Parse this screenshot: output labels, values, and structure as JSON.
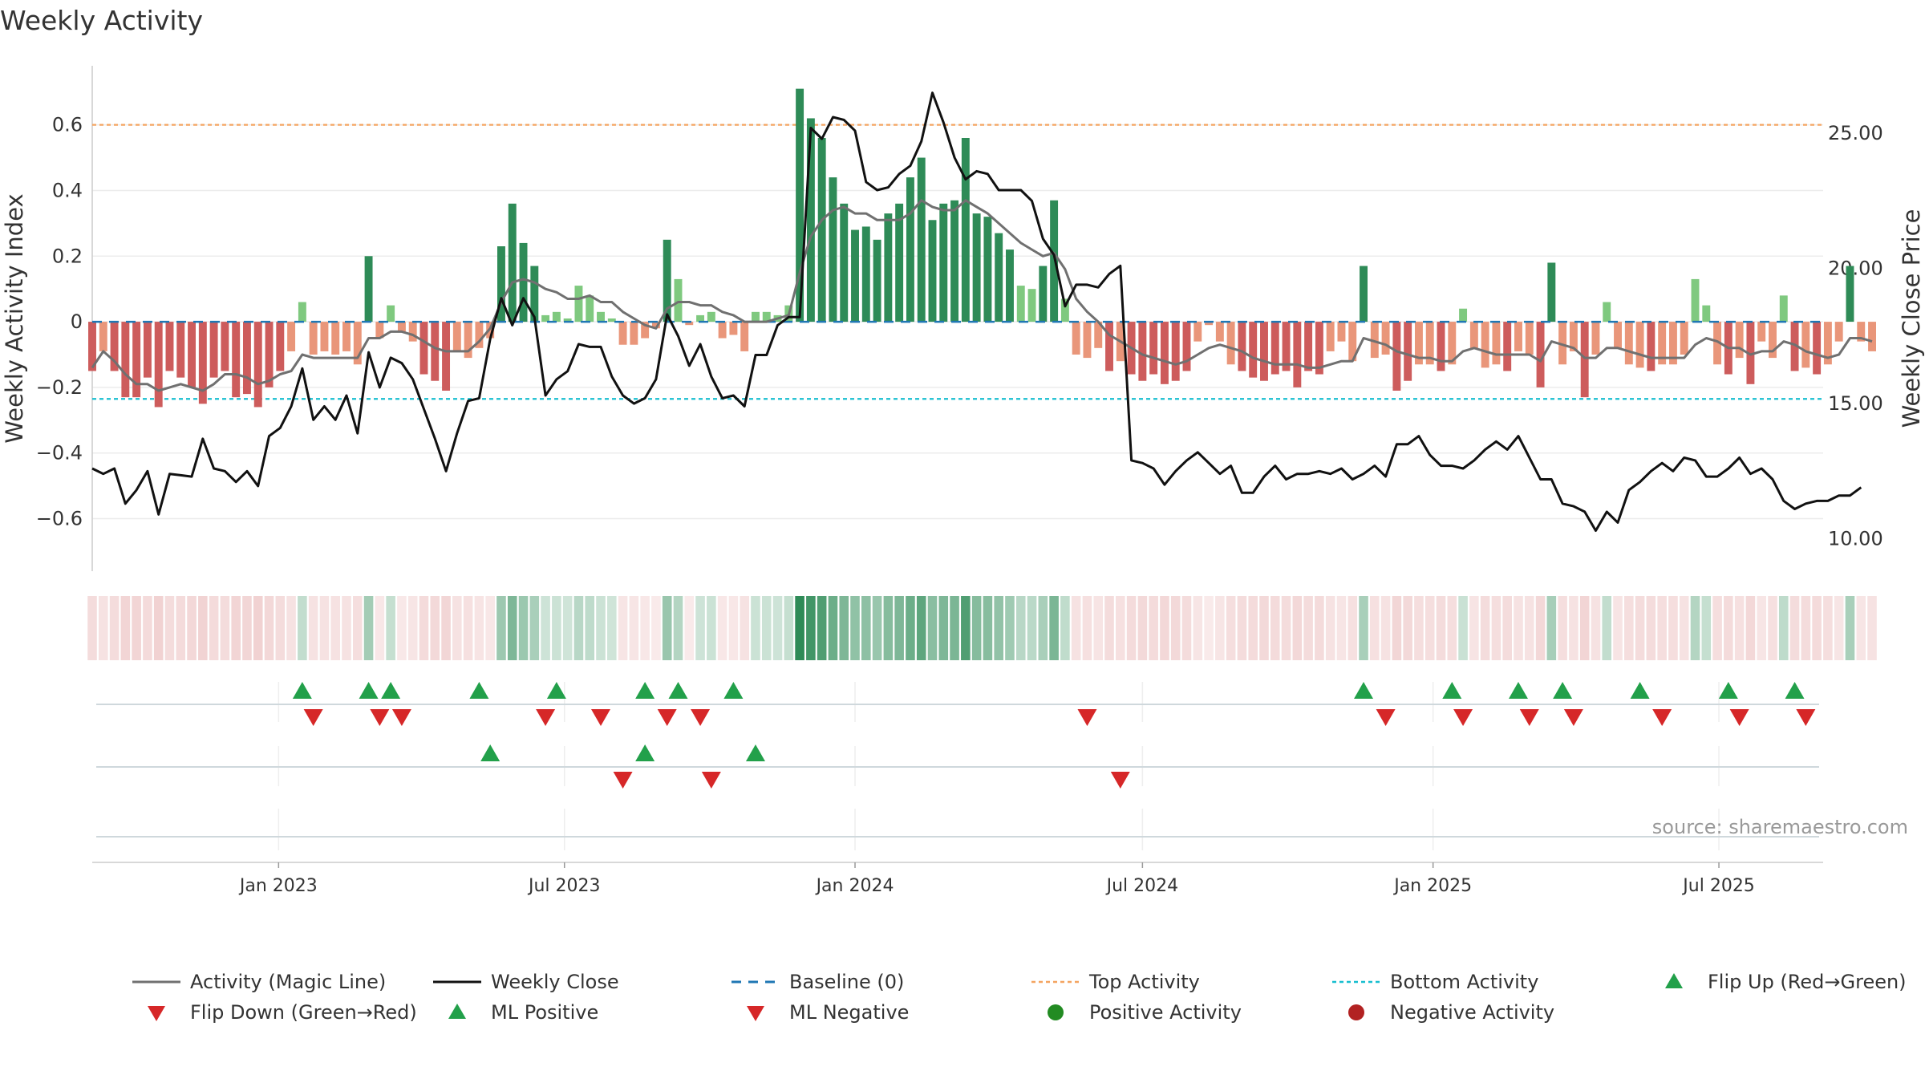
{
  "chart_data": {
    "type": "bar",
    "title": "Weekly Activity",
    "ylabel_left": "Weekly Activity Index",
    "ylabel_right": "Weekly Close Price",
    "ylim_left": [
      -0.76,
      0.78
    ],
    "ylim_right": [
      8.8,
      27.5
    ],
    "yticks_left": [
      0.6,
      0.4,
      0.2,
      0,
      -0.2,
      -0.4,
      -0.6
    ],
    "yticks_left_labels": [
      "0.6",
      "0.4",
      "0.2",
      "0",
      "−0.2",
      "−0.4",
      "−0.6"
    ],
    "yticks_right": [
      25,
      20,
      15,
      10
    ],
    "yticks_right_labels": [
      "25.00",
      "20.00",
      "15.00",
      "10.00"
    ],
    "top_activity": 0.6,
    "bottom_activity": -0.235,
    "x_start": "2022-09-05",
    "x_end": "2025-09-05",
    "xtick_dates": [
      "2023-01-01",
      "2023-07-01",
      "2024-01-01",
      "2024-07-01",
      "2025-01-01",
      "2025-07-01"
    ],
    "xtick_labels": [
      "Jan 2023",
      "Jul 2023",
      "Jan 2024",
      "Jul 2024",
      "Jan 2025",
      "Jul 2025"
    ],
    "source": "source: sharemaestro.com",
    "colors": {
      "pos_strong": "#2e8b57",
      "pos_light": "#7fc97f",
      "neg_strong": "#cd5c5c",
      "neg_light": "#e9967a",
      "magic": "#707070",
      "close": "#111111",
      "baseline": "#1f77b4",
      "top": "#f4a460",
      "bottom": "#17becf",
      "up": "#22a04a",
      "down": "#d62728",
      "neg_dot": "#b22222",
      "pos_dot": "#228b22"
    },
    "series": [
      {
        "name": "Weekly Activity (bars)",
        "start": "2022-09-05",
        "step_days": 7,
        "values": [
          -0.15,
          -0.09,
          -0.15,
          -0.23,
          -0.23,
          -0.17,
          -0.26,
          -0.15,
          -0.17,
          -0.2,
          -0.25,
          -0.17,
          -0.15,
          -0.23,
          -0.22,
          -0.26,
          -0.2,
          -0.15,
          -0.09,
          0.06,
          -0.1,
          -0.09,
          -0.1,
          -0.09,
          -0.13,
          0.2,
          -0.05,
          0.05,
          -0.03,
          -0.06,
          -0.16,
          -0.18,
          -0.21,
          -0.09,
          -0.11,
          -0.08,
          -0.05,
          0.23,
          0.36,
          0.24,
          0.17,
          0.02,
          0.03,
          0.01,
          0.11,
          0.08,
          0.03,
          0.01,
          -0.07,
          -0.07,
          -0.05,
          -0.02,
          0.25,
          0.13,
          -0.01,
          0.02,
          0.03,
          -0.05,
          -0.04,
          -0.09,
          0.03,
          0.03,
          0.02,
          0.05,
          0.71,
          0.62,
          0.56,
          0.44,
          0.36,
          0.28,
          0.29,
          0.25,
          0.33,
          0.36,
          0.44,
          0.5,
          0.31,
          0.36,
          0.37,
          0.56,
          0.33,
          0.32,
          0.27,
          0.22,
          0.11,
          0.1,
          0.17,
          0.37,
          0.07,
          -0.1,
          -0.11,
          -0.08,
          -0.15,
          -0.12,
          -0.16,
          -0.18,
          -0.16,
          -0.19,
          -0.18,
          -0.15,
          -0.06,
          -0.01,
          -0.06,
          -0.13,
          -0.15,
          -0.17,
          -0.18,
          -0.16,
          -0.15,
          -0.2,
          -0.15,
          -0.16,
          -0.09,
          -0.06,
          -0.12,
          0.17,
          -0.11,
          -0.1,
          -0.21,
          -0.18,
          -0.13,
          -0.13,
          -0.15,
          -0.13,
          0.04,
          -0.08,
          -0.14,
          -0.13,
          -0.15,
          -0.09,
          -0.1,
          -0.2,
          0.18,
          -0.13,
          -0.09,
          -0.23,
          -0.1,
          0.06,
          -0.08,
          -0.13,
          -0.14,
          -0.15,
          -0.13,
          -0.13,
          -0.1,
          0.13,
          0.05,
          -0.13,
          -0.16,
          -0.11,
          -0.19,
          -0.06,
          -0.11,
          0.08,
          -0.15,
          -0.14,
          -0.16,
          -0.13,
          -0.06,
          0.17,
          -0.06,
          -0.09
        ]
      },
      {
        "name": "Activity (Magic Line)",
        "start": "2022-09-05",
        "step_days": 7,
        "values": [
          -0.14,
          -0.09,
          -0.12,
          -0.16,
          -0.19,
          -0.19,
          -0.21,
          -0.2,
          -0.19,
          -0.2,
          -0.21,
          -0.19,
          -0.16,
          -0.16,
          -0.17,
          -0.19,
          -0.18,
          -0.16,
          -0.15,
          -0.1,
          -0.11,
          -0.11,
          -0.11,
          -0.11,
          -0.11,
          -0.05,
          -0.05,
          -0.03,
          -0.03,
          -0.04,
          -0.06,
          -0.08,
          -0.09,
          -0.09,
          -0.09,
          -0.06,
          -0.02,
          0.06,
          0.12,
          0.13,
          0.12,
          0.1,
          0.09,
          0.07,
          0.07,
          0.08,
          0.06,
          0.06,
          0.03,
          0.01,
          -0.01,
          -0.02,
          0.04,
          0.06,
          0.06,
          0.05,
          0.05,
          0.03,
          0.02,
          0.0,
          0.0,
          0.0,
          0.01,
          0.02,
          0.15,
          0.26,
          0.31,
          0.34,
          0.35,
          0.33,
          0.33,
          0.31,
          0.31,
          0.31,
          0.33,
          0.37,
          0.35,
          0.34,
          0.34,
          0.37,
          0.35,
          0.33,
          0.3,
          0.27,
          0.24,
          0.22,
          0.2,
          0.21,
          0.16,
          0.07,
          0.03,
          0.0,
          -0.04,
          -0.06,
          -0.08,
          -0.1,
          -0.11,
          -0.12,
          -0.13,
          -0.12,
          -0.1,
          -0.08,
          -0.07,
          -0.08,
          -0.09,
          -0.11,
          -0.12,
          -0.13,
          -0.13,
          -0.13,
          -0.14,
          -0.14,
          -0.13,
          -0.12,
          -0.12,
          -0.05,
          -0.06,
          -0.07,
          -0.09,
          -0.1,
          -0.11,
          -0.11,
          -0.12,
          -0.12,
          -0.09,
          -0.08,
          -0.09,
          -0.1,
          -0.1,
          -0.1,
          -0.1,
          -0.12,
          -0.06,
          -0.07,
          -0.08,
          -0.11,
          -0.11,
          -0.08,
          -0.08,
          -0.09,
          -0.1,
          -0.11,
          -0.11,
          -0.11,
          -0.11,
          -0.07,
          -0.05,
          -0.06,
          -0.08,
          -0.08,
          -0.1,
          -0.09,
          -0.09,
          -0.06,
          -0.07,
          -0.09,
          -0.1,
          -0.11,
          -0.1,
          -0.05,
          -0.05,
          -0.06
        ]
      },
      {
        "name": "Weekly Close",
        "start": "2022-09-05",
        "step_days": 7,
        "values": [
          12.6,
          12.4,
          12.6,
          11.3,
          11.8,
          12.5,
          10.9,
          12.4,
          12.35,
          12.3,
          13.7,
          12.6,
          12.5,
          12.1,
          12.5,
          11.95,
          13.8,
          14.1,
          14.9,
          16.3,
          14.4,
          14.9,
          14.4,
          15.3,
          13.9,
          16.9,
          15.6,
          16.7,
          16.5,
          15.9,
          14.8,
          13.7,
          12.5,
          13.9,
          15.1,
          15.2,
          17.4,
          18.9,
          17.9,
          18.9,
          18.2,
          15.3,
          15.9,
          16.2,
          17.2,
          17.1,
          17.1,
          16.0,
          15.3,
          15.0,
          15.2,
          15.9,
          18.3,
          17.5,
          16.4,
          17.2,
          16.0,
          15.2,
          15.3,
          14.9,
          16.8,
          16.8,
          17.9,
          18.2,
          18.2,
          25.2,
          24.8,
          25.6,
          25.5,
          25.1,
          23.2,
          22.9,
          23.0,
          23.5,
          23.8,
          24.7,
          26.5,
          25.4,
          24.1,
          23.3,
          23.6,
          23.5,
          22.9,
          22.9,
          22.9,
          22.5,
          21.1,
          20.5,
          18.6,
          19.4,
          19.4,
          19.3,
          19.8,
          20.1,
          12.9,
          12.8,
          12.6,
          12.0,
          12.5,
          12.9,
          13.2,
          12.8,
          12.4,
          12.7,
          11.7,
          11.7,
          12.3,
          12.7,
          12.2,
          12.4,
          12.4,
          12.5,
          12.4,
          12.6,
          12.2,
          12.4,
          12.7,
          12.3,
          13.5,
          13.5,
          13.8,
          13.1,
          12.7,
          12.7,
          12.6,
          12.9,
          13.3,
          13.6,
          13.3,
          13.8,
          13.0,
          12.2,
          12.2,
          11.3,
          11.2,
          11.0,
          10.3,
          11.0,
          10.6,
          11.8,
          12.1,
          12.5,
          12.8,
          12.5,
          13.0,
          12.9,
          12.3,
          12.3,
          12.6,
          13.0,
          12.4,
          12.6,
          12.2,
          11.4,
          11.1,
          11.3,
          11.4,
          11.4,
          11.6,
          11.6,
          11.9
        ]
      }
    ],
    "flip_up_weeks": [
      19,
      25,
      27,
      35,
      42,
      50,
      53,
      58,
      115,
      123,
      129,
      133,
      140,
      148,
      154
    ],
    "flip_down_weeks": [
      20,
      26,
      28,
      41,
      46,
      52,
      55,
      90,
      117,
      124,
      130,
      134,
      142,
      149,
      155
    ],
    "ml_positive_weeks": [
      36,
      50,
      60
    ],
    "ml_negative_weeks": [
      48,
      56,
      93
    ],
    "legend": [
      {
        "label": "Activity (Magic Line)",
        "symbol": "line-gray"
      },
      {
        "label": "Weekly Close",
        "symbol": "line-black"
      },
      {
        "label": "Baseline (0)",
        "symbol": "dash-blue"
      },
      {
        "label": "Top Activity",
        "symbol": "dot-orange"
      },
      {
        "label": "Bottom Activity",
        "symbol": "dot-cyan"
      },
      {
        "label": "Flip Up (Red→Green)",
        "symbol": "tri-up"
      },
      {
        "label": "Flip Down (Green→Red)",
        "symbol": "tri-down"
      },
      {
        "label": "ML Positive",
        "symbol": "tri-up"
      },
      {
        "label": "ML Negative",
        "symbol": "tri-down"
      },
      {
        "label": "Positive Activity",
        "symbol": "dot-green"
      },
      {
        "label": "Negative Activity",
        "symbol": "dot-red"
      }
    ]
  }
}
